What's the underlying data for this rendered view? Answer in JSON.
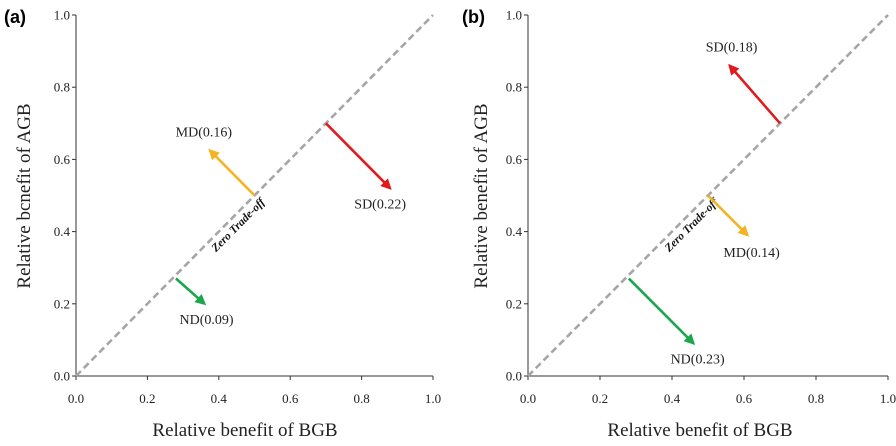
{
  "colors": {
    "axis": "#333333",
    "diagonal": "#a6a6a6",
    "SD": "#e31a1c",
    "MD": "#f5b323",
    "ND": "#1aa64a"
  },
  "chart_data": [
    {
      "type": "scatter",
      "panel_label": "(a)",
      "xlabel": "Relative benefit of BGB",
      "ylabel": "Relative bcnefit of AGB",
      "xlim": [
        0,
        1
      ],
      "ylim": [
        0,
        1
      ],
      "x_ticks": [
        "0.0",
        "0.2",
        "0.4",
        "0.6",
        "0.8",
        "1.0"
      ],
      "y_ticks": [
        "0.0",
        "0.2",
        "0.4",
        "0.6",
        "0.8",
        "1.0"
      ],
      "grid": false,
      "diagonal_label": "Zero Trade-off",
      "arrows": [
        {
          "key": "MD",
          "label": "MD(0.16)",
          "from": [
            0.5,
            0.5
          ],
          "to": [
            0.375,
            0.625
          ]
        },
        {
          "key": "SD",
          "label": "SD(0.22)",
          "from": [
            0.7,
            0.7
          ],
          "to": [
            0.88,
            0.52
          ]
        },
        {
          "key": "ND",
          "label": "ND(0.09)",
          "from": [
            0.28,
            0.27
          ],
          "to": [
            0.36,
            0.2
          ]
        }
      ]
    },
    {
      "type": "scatter",
      "panel_label": "(b)",
      "xlabel": "Relative benefit of BGB",
      "ylabel": "Relative benefit of AGB",
      "xlim": [
        0,
        1
      ],
      "ylim": [
        0,
        1
      ],
      "x_ticks": [
        "0.0",
        "0.2",
        "0.4",
        "0.6",
        "0.8",
        "1.0"
      ],
      "y_ticks": [
        "0.0",
        "0.2",
        "0.4",
        "0.6",
        "0.8",
        "1.0"
      ],
      "grid": false,
      "diagonal_label": "Zero Trade-off",
      "arrows": [
        {
          "key": "SD",
          "label": "SD(0.18)",
          "from": [
            0.7,
            0.7
          ],
          "to": [
            0.56,
            0.86
          ]
        },
        {
          "key": "MD",
          "label": "MD(0.14)",
          "from": [
            0.5,
            0.5
          ],
          "to": [
            0.61,
            0.39
          ]
        },
        {
          "key": "ND",
          "label": "ND(0.23)",
          "from": [
            0.28,
            0.27
          ],
          "to": [
            0.46,
            0.09
          ]
        }
      ]
    }
  ]
}
